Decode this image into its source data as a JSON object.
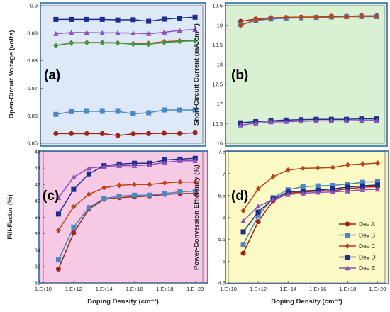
{
  "chart_data": [
    {
      "panel": "(a)",
      "type": "line",
      "ylabel": "Open-Circuit Voltage (volts)",
      "xlabel": "",
      "bg": "#dde9f7",
      "x_log10": [
        11,
        12,
        13,
        14,
        15,
        16,
        17,
        18,
        19,
        20
      ],
      "xlim_log10": [
        10,
        20.5
      ],
      "ylim": [
        0.85,
        0.9
      ],
      "yticks": [
        "0.85",
        "0.86",
        "0.87",
        "0.88",
        "0.89",
        "0.9"
      ],
      "xticks": [],
      "series": [
        {
          "key": "A",
          "values": [
            0.8535,
            0.8535,
            0.8535,
            0.8535,
            0.8528,
            0.8534,
            0.8535,
            0.8536,
            0.8535,
            0.8538
          ]
        },
        {
          "key": "B",
          "values": [
            0.8605,
            0.8615,
            0.8616,
            0.8616,
            0.8616,
            0.8607,
            0.8611,
            0.8621,
            0.8621,
            0.8621
          ]
        },
        {
          "key": "C",
          "values": [
            0.8855,
            0.8865,
            0.8866,
            0.8866,
            0.8865,
            0.8862,
            0.8863,
            0.8869,
            0.8872,
            0.8873
          ]
        },
        {
          "key": "Cg",
          "values": [
            0.8855,
            0.8864,
            0.8865,
            0.8865,
            0.8864,
            0.886,
            0.886,
            0.8866,
            0.887,
            0.8872
          ]
        },
        {
          "key": "D",
          "values": [
            0.895,
            0.895,
            0.895,
            0.895,
            0.8948,
            0.8949,
            0.8943,
            0.8951,
            0.8955,
            0.8958
          ]
        },
        {
          "key": "E",
          "values": [
            0.8898,
            0.8902,
            0.8902,
            0.8901,
            0.8901,
            0.89,
            0.8898,
            0.8903,
            0.891,
            0.8913
          ]
        }
      ]
    },
    {
      "panel": "(b)",
      "type": "line",
      "ylabel": "Short-Circuit Current (mA.cm⁻²)",
      "xlabel": "",
      "bg": "#d9f1d2",
      "x_log10": [
        11,
        12,
        13,
        14,
        15,
        16,
        17,
        18,
        19,
        20
      ],
      "xlim_log10": [
        10,
        20.5
      ],
      "ylim": [
        16,
        19.5
      ],
      "yticks": [
        "16",
        "16.5",
        "17",
        "17.5",
        "18",
        "18.5",
        "19",
        "19.5"
      ],
      "xticks": [],
      "series": [
        {
          "key": "A",
          "values": [
            19.1,
            19.16,
            19.19,
            19.2,
            19.21,
            19.21,
            19.23,
            19.23,
            19.24,
            19.24
          ]
        },
        {
          "key": "B",
          "values": [
            19.02,
            19.12,
            19.16,
            19.18,
            19.19,
            19.2,
            19.21,
            19.22,
            19.22,
            19.22
          ]
        },
        {
          "key": "C",
          "values": [
            19.0,
            19.14,
            19.18,
            19.2,
            19.21,
            19.21,
            19.22,
            19.22,
            19.23,
            19.23
          ]
        },
        {
          "key": "D",
          "values": [
            16.52,
            16.55,
            16.57,
            16.59,
            16.6,
            16.61,
            16.61,
            16.61,
            16.62,
            16.62
          ]
        },
        {
          "key": "E",
          "values": [
            16.46,
            16.51,
            16.54,
            16.55,
            16.56,
            16.57,
            16.57,
            16.57,
            16.58,
            16.58
          ]
        }
      ]
    },
    {
      "panel": "(c)",
      "type": "line",
      "ylabel": "Fill-Factor (%)",
      "xlabel": "Doping Density (cm⁻³)",
      "bg": "#f6c9e4",
      "x_log10": [
        11,
        12,
        13,
        14,
        15,
        16,
        17,
        18,
        19,
        20
      ],
      "xlim_log10": [
        10,
        20.5
      ],
      "ylim": [
        30,
        46
      ],
      "yticks": [
        "30",
        "32",
        "34",
        "36",
        "38",
        "40",
        "42",
        "44",
        "46"
      ],
      "xticks": [
        "1.E+10",
        "1.E+12",
        "1.E+14",
        "1.E+16",
        "1.E+18",
        "1.E+20"
      ],
      "series": [
        {
          "key": "A",
          "values": [
            31.7,
            36.1,
            39.0,
            40.2,
            40.4,
            40.5,
            40.6,
            40.8,
            40.9,
            40.9
          ]
        },
        {
          "key": "B",
          "values": [
            32.8,
            36.8,
            39.2,
            40.3,
            40.6,
            40.7,
            40.7,
            40.9,
            41.1,
            41.2
          ]
        },
        {
          "key": "C",
          "values": [
            36.4,
            39.3,
            40.8,
            41.6,
            41.9,
            42.0,
            42.0,
            42.2,
            42.3,
            42.3
          ]
        },
        {
          "key": "D",
          "values": [
            38.4,
            41.4,
            43.3,
            44.3,
            44.5,
            44.6,
            44.6,
            45.0,
            45.1,
            45.2
          ]
        },
        {
          "key": "E",
          "values": [
            40.4,
            42.9,
            44.0,
            44.2,
            44.3,
            44.3,
            44.4,
            44.7,
            44.9,
            44.9
          ]
        }
      ]
    },
    {
      "panel": "(d)",
      "type": "line",
      "ylabel": "Power-Conversion Efficiency (%)",
      "xlabel": "Doping Density (cm⁻³)",
      "bg": "#fbf9c4",
      "x_log10": [
        11,
        12,
        13,
        14,
        15,
        16,
        17,
        18,
        19,
        20
      ],
      "xlim_log10": [
        10,
        20.5
      ],
      "ylim": [
        4.5,
        7.5
      ],
      "yticks": [
        "4.5",
        "5",
        "5.5",
        "6",
        "6.5",
        "7",
        "7.5"
      ],
      "xticks": [
        "1.E+10",
        "1.E+12",
        "1.E+14",
        "1.E+16",
        "1.E+18",
        "1.E+20"
      ],
      "legend": [
        "Dev A",
        "Dev B",
        "Dev C",
        "Dev D",
        "Dev E"
      ],
      "legend_position": "bottom-right",
      "series": [
        {
          "key": "A",
          "values": [
            5.18,
            5.9,
            6.38,
            6.55,
            6.58,
            6.6,
            6.61,
            6.65,
            6.69,
            6.7
          ]
        },
        {
          "key": "B",
          "values": [
            5.38,
            6.03,
            6.45,
            6.63,
            6.7,
            6.72,
            6.73,
            6.76,
            6.8,
            6.82
          ]
        },
        {
          "key": "C",
          "values": [
            6.15,
            6.65,
            6.93,
            7.08,
            7.12,
            7.13,
            7.14,
            7.2,
            7.22,
            7.24
          ]
        },
        {
          "key": "D",
          "values": [
            5.67,
            6.12,
            6.42,
            6.58,
            6.6,
            6.62,
            6.65,
            6.69,
            6.72,
            6.74
          ]
        },
        {
          "key": "E",
          "values": [
            5.92,
            6.25,
            6.41,
            6.52,
            6.55,
            6.57,
            6.58,
            6.6,
            6.63,
            6.64
          ]
        }
      ]
    }
  ],
  "series_styles": {
    "A": {
      "color": "#a32116",
      "marker": "circle"
    },
    "B": {
      "color": "#4f86c0",
      "marker": "square"
    },
    "C": {
      "color": "#b8461a",
      "marker": "diamond"
    },
    "Cg": {
      "color": "#3d9b3d",
      "marker": "diamond"
    },
    "D": {
      "color": "#1f2d8a",
      "marker": "square"
    },
    "E": {
      "color": "#8e4fbf",
      "marker": "triangle"
    }
  }
}
